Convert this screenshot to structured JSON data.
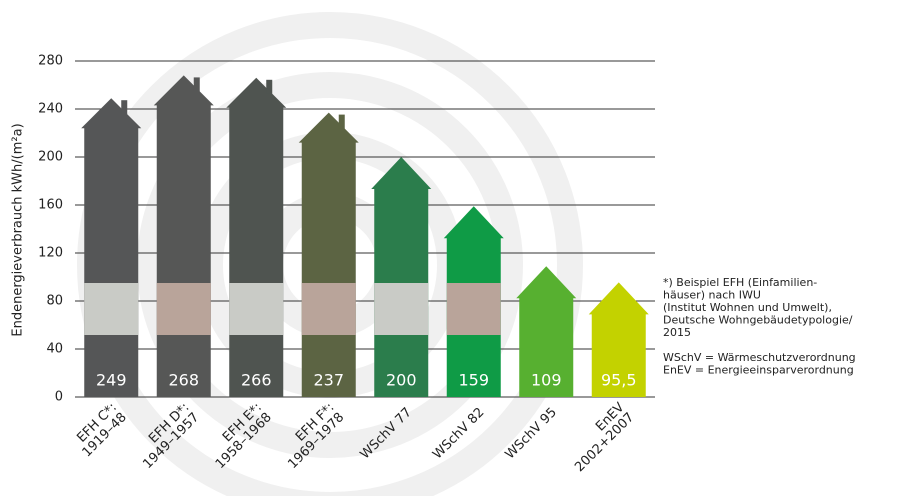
{
  "chart_data": {
    "type": "house-bar",
    "y_label": "Endenergieverbrauch kWh/(m²a)",
    "categories": [
      [
        "EFH C*:",
        "1919–48"
      ],
      [
        "EFH D*:",
        "1949–1957"
      ],
      [
        "EFH E*:",
        "1958–1968"
      ],
      [
        "EFH F*:",
        "1969–1978"
      ],
      [
        "WSchV 77"
      ],
      [
        "WSchV 82"
      ],
      [
        "WSchV 95"
      ],
      [
        "EnEV",
        "2002+2007"
      ]
    ],
    "values": [
      249,
      268,
      266,
      237,
      200,
      159,
      109,
      95.5
    ],
    "value_labels": [
      "249",
      "268",
      "266",
      "237",
      "200",
      "159",
      "109",
      "95,5"
    ],
    "colors": [
      "#555657",
      "#565756",
      "#4f5450",
      "#5c6443",
      "#2b7d4c",
      "#0f9b46",
      "#57b030",
      "#c3d200"
    ],
    "ylim": [
      0,
      280
    ],
    "yticks": [
      0,
      40,
      80,
      120,
      160,
      200,
      240,
      280
    ],
    "grid": true,
    "notes": [
      "*) Beispiel EFH (Einfamilien-",
      "häuser) nach IWU",
      "(Institut Wohnen und Umwelt),",
      "Deutsche Wohngebäudetypologie/",
      "2015",
      "",
      "WSchV = Wärmeschutzverordnung",
      "EnEV = Energieeinsparverordnung"
    ]
  }
}
